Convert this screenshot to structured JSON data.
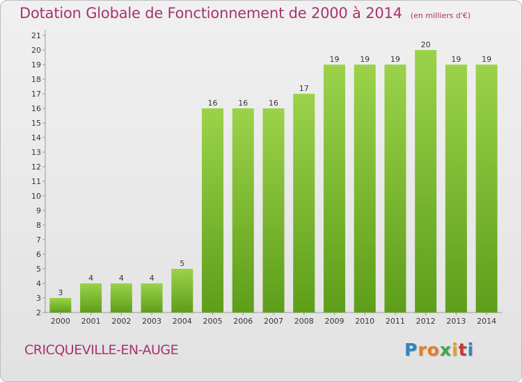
{
  "header": {
    "title": "Dotation Globale de Fonctionnement de 2000 à 2014",
    "unit": "(en milliers d'€)"
  },
  "footer": {
    "commune": "CRICQUEVILLE-EN-AUGE",
    "logo_text": "Proxiti",
    "logo_colors": [
      "#2e86c1",
      "#e67e22",
      "#e67e22",
      "#3fa34d",
      "#e4a11b",
      "#c0392b",
      "#2e86c1"
    ]
  },
  "colors": {
    "bar_top": "#9bd24a",
    "bar_bottom": "#5e9e1a",
    "axis": "#999999",
    "text": "#333333",
    "title": "#a8336e"
  },
  "chart_data": {
    "type": "bar",
    "title": "Dotation Globale de Fonctionnement de 2000 à 2014",
    "subtitle": "(en milliers d'€)",
    "categories": [
      "2000",
      "2001",
      "2002",
      "2003",
      "2004",
      "2005",
      "2006",
      "2007",
      "2008",
      "2009",
      "2010",
      "2011",
      "2012",
      "2013",
      "2014"
    ],
    "values": [
      3,
      4,
      4,
      4,
      5,
      16,
      16,
      16,
      17,
      19,
      19,
      19,
      20,
      19,
      19
    ],
    "ylim": [
      2,
      21
    ],
    "yticks": [
      2,
      3,
      4,
      5,
      6,
      7,
      8,
      9,
      10,
      11,
      12,
      13,
      14,
      15,
      16,
      17,
      18,
      19,
      20,
      21
    ],
    "grid": false,
    "legend": "none",
    "data_labels": true
  }
}
